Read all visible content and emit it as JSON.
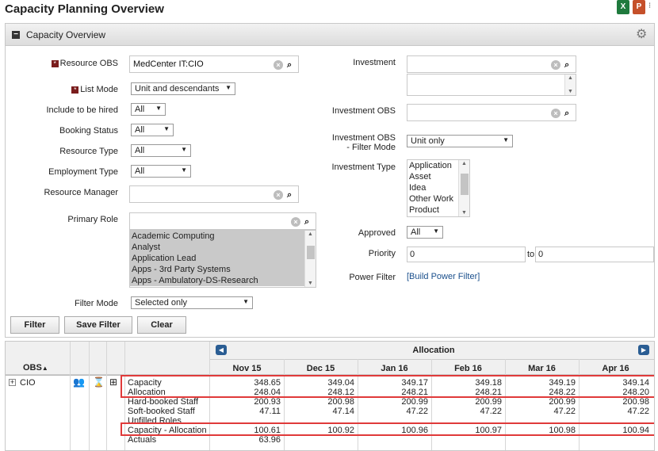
{
  "page_title": "Capacity Planning Overview",
  "panel": {
    "title": "Capacity Overview",
    "resource_obs": {
      "label": "Resource OBS",
      "value": "MedCenter IT:CIO"
    },
    "list_mode": {
      "label": "List Mode",
      "value": "Unit and descendants"
    },
    "include_to_be_hired": {
      "label": "Include to be hired",
      "value": "All"
    },
    "booking_status": {
      "label": "Booking Status",
      "value": "All"
    },
    "resource_type": {
      "label": "Resource Type",
      "value": "All"
    },
    "employment_type": {
      "label": "Employment Type",
      "value": "All"
    },
    "resource_manager": {
      "label": "Resource Manager",
      "value": ""
    },
    "primary_role": {
      "label": "Primary Role",
      "value": "",
      "options": [
        "Academic Computing",
        "Analyst",
        "Application Lead",
        "Apps - 3rd Party Systems",
        "Apps - Ambulatory-DS-Research"
      ]
    },
    "filter_mode": {
      "label": "Filter Mode",
      "value": "Selected only"
    },
    "investment": {
      "label": "Investment",
      "value": ""
    },
    "investment_obs": {
      "label": "Investment OBS",
      "value": ""
    },
    "investment_obs_filter_mode": {
      "label_line1": "Investment OBS",
      "label_line2": "- Filter Mode",
      "value": "Unit only"
    },
    "investment_type": {
      "label": "Investment Type",
      "options": [
        "Application",
        "Asset",
        "Idea",
        "Other Work",
        "Product"
      ]
    },
    "approved": {
      "label": "Approved",
      "value": "All"
    },
    "priority": {
      "label": "Priority",
      "from": "0",
      "to_label": "to",
      "to": "0"
    },
    "power_filter": {
      "label": "Power Filter",
      "link": "[Build Power Filter]"
    },
    "buttons": {
      "filter": "Filter",
      "save_filter": "Save Filter",
      "clear": "Clear"
    }
  },
  "grid": {
    "obs_header": "OBS",
    "allocation_header": "Allocation",
    "months": [
      "Nov 15",
      "Dec 15",
      "Jan 16",
      "Feb 16",
      "Mar 16",
      "Apr 16"
    ],
    "row_name": "CIO",
    "metrics": [
      {
        "label": "Capacity",
        "values": [
          "348.65",
          "349.04",
          "349.17",
          "349.18",
          "349.19",
          "349.14"
        ]
      },
      {
        "label": "Allocation",
        "values": [
          "248.04",
          "248.12",
          "248.21",
          "248.21",
          "248.22",
          "248.20"
        ]
      },
      {
        "label": "Hard-booked Staff",
        "values": [
          "200.93",
          "200.98",
          "200.99",
          "200.99",
          "200.99",
          "200.98"
        ]
      },
      {
        "label": "Soft-booked Staff",
        "values": [
          "47.11",
          "47.14",
          "47.22",
          "47.22",
          "47.22",
          "47.22"
        ]
      },
      {
        "label": "Unfilled Roles",
        "values": [
          "",
          "",
          "",
          "",
          "",
          ""
        ]
      },
      {
        "label": "Capacity - Allocation",
        "values": [
          "100.61",
          "100.92",
          "100.96",
          "100.97",
          "100.98",
          "100.94"
        ]
      },
      {
        "label": "Actuals",
        "values": [
          "63.96",
          "",
          "",
          "",
          "",
          ""
        ]
      }
    ]
  }
}
